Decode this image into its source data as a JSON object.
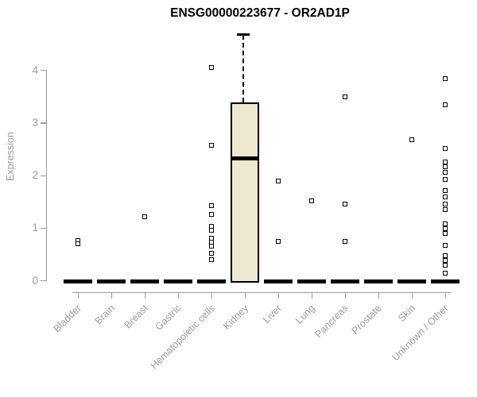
{
  "chart_data": {
    "type": "boxplot",
    "title": "ENSG00000223677 - OR2AD1P",
    "ylabel": "Expression",
    "xlabel": "",
    "ylim": [
      0,
      4.7
    ],
    "yticks": [
      0,
      1,
      2,
      3,
      4
    ],
    "grid": false,
    "legend": "none",
    "colors": {
      "box_fill": "#EDE8CF",
      "box_border": "#000000",
      "median": "#000000",
      "axis": "#9b9b9b",
      "tick_label": "#9b9b9b",
      "title": "#000000"
    },
    "categories": [
      "Bladder",
      "Brain",
      "Breast",
      "Gastric",
      "Hematopoietic cells",
      "Kidney",
      "Liver",
      "Lung",
      "Pancreas",
      "Prostate",
      "Skin",
      "Unknown / Other"
    ],
    "series": [
      {
        "category": "Bladder",
        "box": {
          "q1": 0,
          "median": 0,
          "q3": 0,
          "whisker_low": 0,
          "whisker_high": 0
        },
        "outliers": [
          0.75,
          0.69
        ]
      },
      {
        "category": "Brain",
        "box": {
          "q1": 0,
          "median": 0,
          "q3": 0,
          "whisker_low": 0,
          "whisker_high": 0
        },
        "outliers": []
      },
      {
        "category": "Breast",
        "box": {
          "q1": 0,
          "median": 0,
          "q3": 0,
          "whisker_low": 0,
          "whisker_high": 0
        },
        "outliers": [
          1.21
        ]
      },
      {
        "category": "Gastric",
        "box": {
          "q1": 0,
          "median": 0,
          "q3": 0,
          "whisker_low": 0,
          "whisker_high": 0
        },
        "outliers": []
      },
      {
        "category": "Hematopoietic cells",
        "box": {
          "q1": 0,
          "median": 0,
          "q3": 0,
          "whisker_low": 0,
          "whisker_high": 0
        },
        "outliers": [
          4.05,
          2.57,
          1.42,
          1.26,
          1.03,
          0.95,
          0.8,
          0.72,
          0.65,
          0.52,
          0.4
        ]
      },
      {
        "category": "Kidney",
        "box": {
          "q1": 0,
          "median": 2.31,
          "q3": 3.37,
          "whisker_low": 0,
          "whisker_high": 4.68
        },
        "outliers": []
      },
      {
        "category": "Liver",
        "box": {
          "q1": 0,
          "median": 0,
          "q3": 0,
          "whisker_low": 0,
          "whisker_high": 0
        },
        "outliers": [
          1.89,
          0.74
        ]
      },
      {
        "category": "Lung",
        "box": {
          "q1": 0,
          "median": 0,
          "q3": 0,
          "whisker_low": 0,
          "whisker_high": 0
        },
        "outliers": [
          1.51
        ]
      },
      {
        "category": "Pancreas",
        "box": {
          "q1": 0,
          "median": 0,
          "q3": 0,
          "whisker_low": 0,
          "whisker_high": 0
        },
        "outliers": [
          3.48,
          1.45,
          0.74
        ]
      },
      {
        "category": "Prostate",
        "box": {
          "q1": 0,
          "median": 0,
          "q3": 0,
          "whisker_low": 0,
          "whisker_high": 0
        },
        "outliers": []
      },
      {
        "category": "Skin",
        "box": {
          "q1": 0,
          "median": 0,
          "q3": 0,
          "whisker_low": 0,
          "whisker_high": 0
        },
        "outliers": [
          2.67
        ]
      },
      {
        "category": "Unknown / Other",
        "box": {
          "q1": 0,
          "median": 0,
          "q3": 0,
          "whisker_low": 0,
          "whisker_high": 0
        },
        "outliers": [
          3.83,
          3.34,
          2.51,
          2.25,
          2.16,
          2.06,
          1.91,
          1.71,
          1.59,
          1.45,
          1.34,
          1.07,
          0.98,
          0.89,
          0.67,
          0.47,
          0.38,
          0.29,
          0.13
        ]
      }
    ]
  }
}
